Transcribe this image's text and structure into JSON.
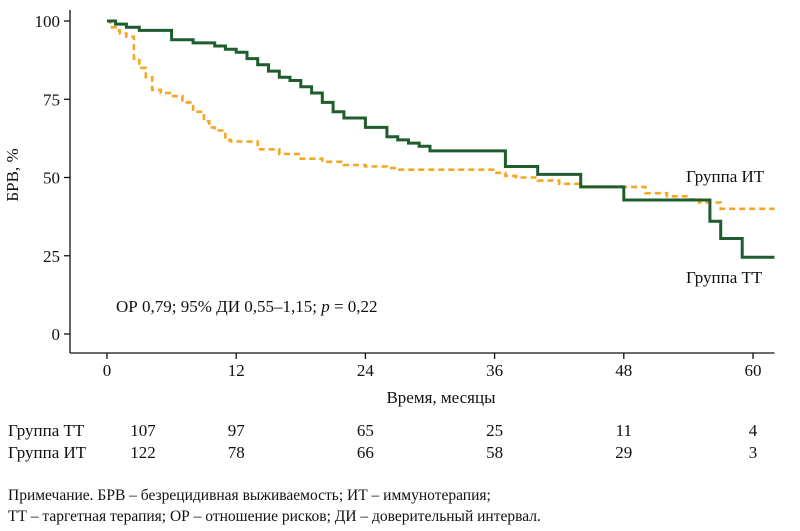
{
  "chart_data": {
    "type": "line",
    "subtype": "kaplan-meier step",
    "ylabel": "БРВ, %",
    "xlabel": "Время, месяцы",
    "xlim": [
      0,
      62
    ],
    "ylim": [
      0,
      100
    ],
    "x_ticks": [
      0,
      12,
      24,
      36,
      48,
      60
    ],
    "y_ticks": [
      0,
      25,
      50,
      75,
      100
    ],
    "grid": false,
    "annotation": {
      "prefix": "ОР 0,79; 95% ДИ 0,55–1,15; ",
      "p_symbol": "p",
      "suffix": " = 0,22"
    },
    "series": [
      {
        "name": "Группа ТТ",
        "color": "#1f5c2e",
        "style": "solid",
        "x": [
          0,
          0.8,
          1.8,
          3,
          4.5,
          6,
          8,
          10,
          11,
          12,
          13,
          14,
          15,
          16,
          17,
          18,
          19,
          20,
          21,
          22,
          24,
          26,
          27,
          28,
          29,
          30,
          32,
          34,
          36,
          37,
          39,
          40,
          42,
          44,
          46,
          48,
          50,
          52,
          55,
          56,
          57,
          58,
          59,
          62
        ],
        "y": [
          100,
          99,
          98,
          97,
          97,
          94,
          93,
          92,
          91,
          90,
          88,
          86,
          84,
          82,
          81,
          79,
          77,
          74,
          71,
          69,
          66,
          63,
          62,
          61,
          60,
          58.5,
          58.5,
          58.5,
          58.5,
          53.5,
          53.5,
          51,
          51,
          47,
          47,
          42.8,
          42.8,
          42.8,
          42.8,
          36,
          30.5,
          30.5,
          24.5,
          24.5
        ]
      },
      {
        "name": "Группа ИТ",
        "color": "#f5a623",
        "style": "dashed",
        "x": [
          0,
          0.3,
          0.8,
          1.2,
          1.8,
          2.5,
          3,
          3.6,
          4.2,
          5,
          6,
          7,
          8,
          9,
          9.5,
          10,
          11,
          11.5,
          12,
          14,
          16,
          18,
          20,
          22,
          24,
          26,
          27,
          28,
          30,
          32,
          34,
          36,
          37,
          38,
          40,
          42,
          44,
          46,
          48,
          50,
          52,
          54,
          55,
          57,
          62
        ],
        "y": [
          100,
          98,
          97,
          96,
          95,
          88,
          85,
          82,
          78,
          77,
          76,
          74,
          71,
          68,
          66,
          65,
          62,
          61.5,
          61.5,
          59,
          57.5,
          56,
          55,
          54,
          53.5,
          53,
          52.5,
          52.5,
          52.5,
          52.5,
          52.5,
          51.5,
          50.5,
          50,
          49,
          48,
          47,
          47,
          47,
          45,
          44,
          43,
          42,
          40,
          40
        ]
      }
    ]
  },
  "series_labels": {
    "it": "Группа ИТ",
    "tt": "Группа ТТ"
  },
  "at_risk": {
    "rows": [
      {
        "label": "Группа ТТ",
        "values": [
          "107",
          "97",
          "65",
          "25",
          "11",
          "4"
        ]
      },
      {
        "label": "Группа ИТ",
        "values": [
          "122",
          "78",
          "66",
          "58",
          "29",
          "3"
        ]
      }
    ]
  },
  "note": {
    "line1": "Примечание. БРВ – безрецидивная выживаемость; ИТ – иммунотерапия;",
    "line2": "ТТ – таргетная терапия; ОР – отношение рисков; ДИ – доверительный интервал."
  }
}
